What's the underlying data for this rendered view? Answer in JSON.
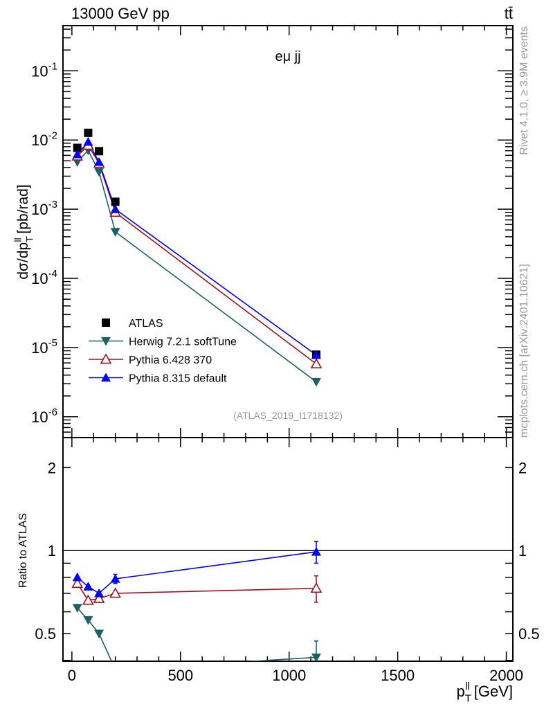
{
  "header": {
    "energy_label": "13000 GeV pp",
    "process_label": "tt̄",
    "region_label": "eμ jj",
    "analysis_id": "(ATLAS_2019_I1718132)",
    "side_top": "Rivet 4.1.0, ≥ 3.9M events",
    "side_bottom": "mcplots.cern.ch [arXiv:2401.10621]"
  },
  "chart_data": [
    {
      "type": "line",
      "yscale": "log",
      "ylabel": "dσ/dp_T^ll [pb/rad]",
      "ylim": [
        5e-07,
        0.45
      ],
      "xlim": [
        -41,
        2030
      ],
      "ytick_labels": [
        "10^-6",
        "10^-5",
        "10^-4",
        "10^-3",
        "10^-2",
        "10^-1"
      ],
      "ytick_values": [
        1e-06,
        1e-05,
        0.0001,
        0.001,
        0.01,
        0.1
      ],
      "legend_position": "bottom-left",
      "x": [
        25,
        75,
        125,
        200,
        1125
      ],
      "series": [
        {
          "name": "ATLAS",
          "color": "#000000",
          "marker": "square",
          "values": [
            0.0077,
            0.0127,
            0.0069,
            0.00128,
            7.9e-06
          ]
        },
        {
          "name": "Herwig 7.2.1 softTune",
          "color": "#1f5f66",
          "marker": "triangle-down",
          "values": [
            0.0048,
            0.0071,
            0.00345,
            0.00047,
            3.2e-06
          ]
        },
        {
          "name": "Pythia 6.428 370",
          "color": "#a0101e",
          "marker": "triangle-open",
          "values": [
            0.00585,
            0.0084,
            0.0046,
            0.0009,
            5.8e-06
          ]
        },
        {
          "name": "Pythia 8.315 default",
          "color": "#0000ee",
          "marker": "triangle-up",
          "values": [
            0.0062,
            0.0094,
            0.0048,
            0.001,
            7.8e-06
          ]
        }
      ]
    },
    {
      "type": "line",
      "yscale": "log",
      "ylabel": "Ratio to ATLAS",
      "xlabel": "p_T^ll [GeV]",
      "ylim": [
        0.397,
        2.57
      ],
      "xlim": [
        -41,
        2030
      ],
      "ytick_labels": [
        "0.5",
        "1",
        "2"
      ],
      "ytick_values": [
        0.5,
        1,
        2
      ],
      "xtick_labels": [
        "0",
        "500",
        "1000",
        "1500",
        "2000"
      ],
      "xtick_values": [
        0,
        500,
        1000,
        1500,
        2000
      ],
      "x": [
        25,
        75,
        125,
        200,
        1125
      ],
      "series": [
        {
          "name": "Herwig 7.2.1 softTune",
          "values": [
            0.62,
            0.56,
            0.5,
            0.37,
            0.41
          ],
          "errors": [
            0,
            0,
            0,
            0,
            0.06
          ]
        },
        {
          "name": "Pythia 6.428 370",
          "values": [
            0.76,
            0.66,
            0.67,
            0.7,
            0.73
          ],
          "errors": [
            0,
            0,
            0,
            0.01,
            0.08
          ]
        },
        {
          "name": "Pythia 8.315 default",
          "values": [
            0.8,
            0.74,
            0.7,
            0.79,
            0.99
          ],
          "errors": [
            0,
            0,
            0,
            0.03,
            0.09
          ]
        }
      ]
    }
  ]
}
